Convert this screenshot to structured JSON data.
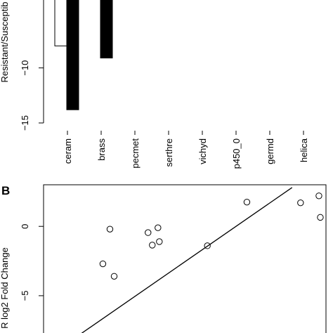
{
  "chart_data": [
    {
      "type": "bar",
      "panel_label": "",
      "ylabel": "Resistant/Susceptib",
      "categories": [
        "ceram",
        "brass",
        "pecmet",
        "serthre",
        "vichyd",
        "p450_0",
        "germd",
        "helica"
      ],
      "ylim": [
        -15,
        0
      ],
      "yticks": [
        -15,
        -10
      ],
      "series": [
        {
          "color": "#ffffff",
          "values": [
            -8.0,
            null,
            null,
            null,
            null,
            null,
            null,
            null
          ]
        },
        {
          "color": "#000000",
          "values": [
            -13.8,
            -9.1,
            null,
            null,
            null,
            null,
            null,
            null
          ]
        }
      ]
    },
    {
      "type": "scatter",
      "panel_label": "B",
      "ylabel": "R log2 Fold Change",
      "ylim": [
        -8.5,
        3
      ],
      "yticks": [
        0,
        -5
      ],
      "xlim": [
        0,
        10
      ],
      "points": [
        {
          "x": 2.35,
          "y": -0.2
        },
        {
          "x": 2.1,
          "y": -2.7
        },
        {
          "x": 2.5,
          "y": -3.6
        },
        {
          "x": 3.7,
          "y": -0.45
        },
        {
          "x": 3.85,
          "y": -1.35
        },
        {
          "x": 4.05,
          "y": -0.1
        },
        {
          "x": 4.1,
          "y": -1.1
        },
        {
          "x": 5.8,
          "y": -1.4
        },
        {
          "x": 7.2,
          "y": 1.75
        },
        {
          "x": 9.1,
          "y": 1.7
        },
        {
          "x": 9.75,
          "y": 2.2
        },
        {
          "x": 9.8,
          "y": 0.65
        }
      ],
      "fit_line": [
        {
          "x": 1.0,
          "y": -8.2
        },
        {
          "x": 8.8,
          "y": 2.8
        }
      ]
    }
  ]
}
